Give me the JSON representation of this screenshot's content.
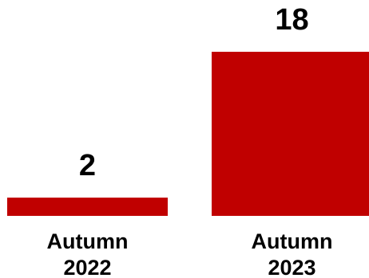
{
  "chart_data": {
    "type": "bar",
    "categories": [
      [
        "Autumn",
        "2022"
      ],
      [
        "Autumn",
        "2023"
      ]
    ],
    "values": [
      2,
      18
    ],
    "data_labels": [
      "2",
      "18"
    ],
    "ylim": [
      0,
      18
    ],
    "grid": false,
    "bar_color": "#c00000"
  }
}
